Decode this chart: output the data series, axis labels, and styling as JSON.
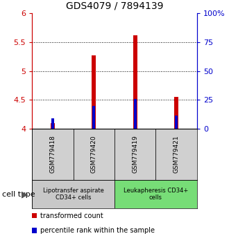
{
  "title": "GDS4079 / 7894139",
  "samples": [
    "GSM779418",
    "GSM779420",
    "GSM779419",
    "GSM779421"
  ],
  "red_values": [
    4.1,
    5.27,
    5.62,
    4.55
  ],
  "blue_values": [
    4.18,
    4.4,
    4.52,
    4.23
  ],
  "ymin": 4.0,
  "ymax": 6.0,
  "yticks_left": [
    4.0,
    4.5,
    5.0,
    5.5,
    6.0
  ],
  "ytick_labels_left": [
    "4",
    "4.5",
    "5",
    "5.5",
    "6"
  ],
  "yticks_right": [
    0,
    25,
    50,
    75,
    100
  ],
  "ytick_labels_right": [
    "0",
    "25",
    "50",
    "75",
    "100%"
  ],
  "groups": [
    {
      "label": "Lipotransfer aspirate\nCD34+ cells",
      "indices": [
        0,
        1
      ],
      "color": "#c8c8c8"
    },
    {
      "label": "Leukapheresis CD34+\ncells",
      "indices": [
        2,
        3
      ],
      "color": "#77dd77"
    }
  ],
  "cell_type_label": "cell type",
  "legend_red": "transformed count",
  "legend_blue": "percentile rank within the sample",
  "bar_width": 0.1,
  "blue_bar_width": 0.07,
  "left_color": "#cc0000",
  "right_color": "#0000cc",
  "title_fontsize": 10,
  "tick_fontsize": 8,
  "sample_fontsize": 6.5,
  "group_fontsize": 6,
  "legend_fontsize": 7,
  "cell_type_fontsize": 8
}
